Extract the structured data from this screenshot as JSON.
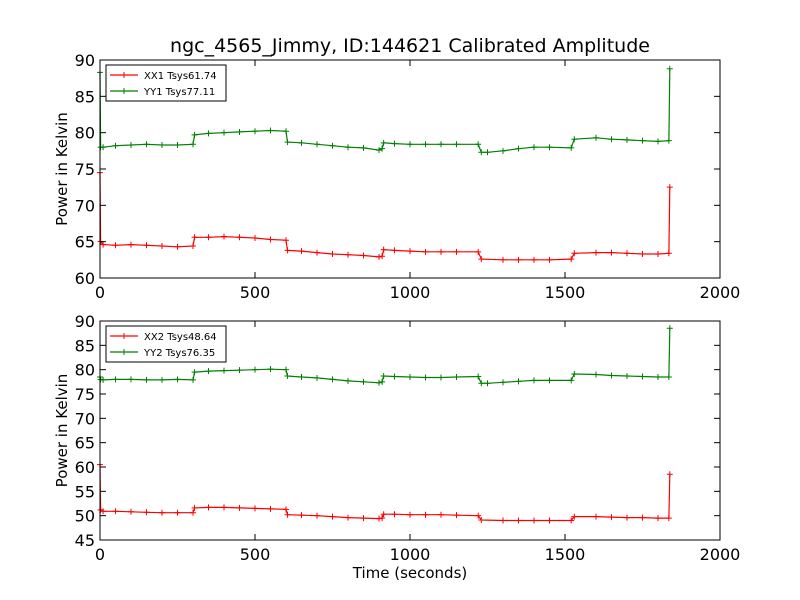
{
  "figure": {
    "title": "ngc_4565_Jimmy, ID:144621 Calibrated Amplitude"
  },
  "chart_data": [
    {
      "type": "line",
      "title": "ngc_4565_Jimmy, ID:144621 Calibrated Amplitude",
      "xlabel": "",
      "ylabel": "Power in Kelvin",
      "xlim": [
        0,
        2000
      ],
      "ylim": [
        60,
        90
      ],
      "xticks": [
        "0",
        "500",
        "1000",
        "1500",
        "2000"
      ],
      "yticks": [
        "60",
        "65",
        "70",
        "75",
        "80",
        "85",
        "90"
      ],
      "grid": false,
      "legend_position": "top-left",
      "series": [
        {
          "name": "XX1 Tsys61.74",
          "color": "#ff0000",
          "points": [
            [
              0,
              74.5
            ],
            [
              2,
              65.0
            ],
            [
              10,
              64.6
            ],
            [
              50,
              64.5
            ],
            [
              100,
              64.6
            ],
            [
              150,
              64.5
            ],
            [
              200,
              64.4
            ],
            [
              250,
              64.3
            ],
            [
              300,
              64.4
            ],
            [
              305,
              65.6
            ],
            [
              350,
              65.6
            ],
            [
              400,
              65.7
            ],
            [
              450,
              65.6
            ],
            [
              500,
              65.5
            ],
            [
              550,
              65.3
            ],
            [
              600,
              65.2
            ],
            [
              605,
              63.8
            ],
            [
              650,
              63.7
            ],
            [
              700,
              63.5
            ],
            [
              750,
              63.3
            ],
            [
              800,
              63.2
            ],
            [
              850,
              63.1
            ],
            [
              900,
              62.9
            ],
            [
              910,
              63.0
            ],
            [
              915,
              63.9
            ],
            [
              950,
              63.8
            ],
            [
              1000,
              63.7
            ],
            [
              1050,
              63.6
            ],
            [
              1100,
              63.6
            ],
            [
              1150,
              63.6
            ],
            [
              1220,
              63.6
            ],
            [
              1230,
              62.6
            ],
            [
              1300,
              62.5
            ],
            [
              1350,
              62.5
            ],
            [
              1400,
              62.5
            ],
            [
              1450,
              62.5
            ],
            [
              1520,
              62.6
            ],
            [
              1530,
              63.4
            ],
            [
              1600,
              63.5
            ],
            [
              1650,
              63.5
            ],
            [
              1700,
              63.4
            ],
            [
              1750,
              63.3
            ],
            [
              1800,
              63.3
            ],
            [
              1835,
              63.4
            ],
            [
              1838,
              72.5
            ]
          ]
        },
        {
          "name": "YY1 Tsys77.11",
          "color": "#008000",
          "points": [
            [
              0,
              88.3
            ],
            [
              2,
              78.0
            ],
            [
              10,
              78.0
            ],
            [
              50,
              78.2
            ],
            [
              100,
              78.3
            ],
            [
              150,
              78.4
            ],
            [
              200,
              78.3
            ],
            [
              250,
              78.3
            ],
            [
              300,
              78.4
            ],
            [
              305,
              79.7
            ],
            [
              350,
              79.9
            ],
            [
              400,
              80.0
            ],
            [
              450,
              80.1
            ],
            [
              500,
              80.2
            ],
            [
              550,
              80.3
            ],
            [
              600,
              80.2
            ],
            [
              605,
              78.7
            ],
            [
              650,
              78.6
            ],
            [
              700,
              78.4
            ],
            [
              750,
              78.2
            ],
            [
              800,
              78.0
            ],
            [
              850,
              77.9
            ],
            [
              900,
              77.6
            ],
            [
              910,
              77.8
            ],
            [
              915,
              78.6
            ],
            [
              950,
              78.5
            ],
            [
              1000,
              78.4
            ],
            [
              1050,
              78.4
            ],
            [
              1100,
              78.4
            ],
            [
              1150,
              78.4
            ],
            [
              1220,
              78.4
            ],
            [
              1230,
              77.3
            ],
            [
              1250,
              77.3
            ],
            [
              1300,
              77.5
            ],
            [
              1350,
              77.8
            ],
            [
              1400,
              78.0
            ],
            [
              1450,
              78.0
            ],
            [
              1520,
              77.9
            ],
            [
              1530,
              79.1
            ],
            [
              1600,
              79.3
            ],
            [
              1650,
              79.1
            ],
            [
              1700,
              79.0
            ],
            [
              1750,
              78.9
            ],
            [
              1800,
              78.8
            ],
            [
              1835,
              78.9
            ],
            [
              1838,
              88.8
            ]
          ]
        }
      ]
    },
    {
      "type": "line",
      "title": "",
      "xlabel": "Time (seconds)",
      "ylabel": "Power in Kelvin",
      "xlim": [
        0,
        2000
      ],
      "ylim": [
        45,
        90
      ],
      "xticks": [
        "0",
        "500",
        "1000",
        "1500",
        "2000"
      ],
      "yticks": [
        "45",
        "50",
        "55",
        "60",
        "65",
        "70",
        "75",
        "80",
        "85",
        "90"
      ],
      "grid": false,
      "legend_position": "top-left",
      "series": [
        {
          "name": "XX2 Tsys48.64",
          "color": "#ff0000",
          "points": [
            [
              0,
              60.5
            ],
            [
              2,
              51.2
            ],
            [
              10,
              50.9
            ],
            [
              50,
              50.9
            ],
            [
              100,
              50.8
            ],
            [
              150,
              50.7
            ],
            [
              200,
              50.6
            ],
            [
              250,
              50.6
            ],
            [
              300,
              50.6
            ],
            [
              305,
              51.6
            ],
            [
              350,
              51.7
            ],
            [
              400,
              51.7
            ],
            [
              450,
              51.6
            ],
            [
              500,
              51.5
            ],
            [
              550,
              51.4
            ],
            [
              600,
              51.3
            ],
            [
              605,
              50.2
            ],
            [
              650,
              50.1
            ],
            [
              700,
              50.0
            ],
            [
              750,
              49.8
            ],
            [
              800,
              49.6
            ],
            [
              850,
              49.5
            ],
            [
              900,
              49.4
            ],
            [
              910,
              49.5
            ],
            [
              915,
              50.3
            ],
            [
              950,
              50.3
            ],
            [
              1000,
              50.2
            ],
            [
              1050,
              50.2
            ],
            [
              1100,
              50.2
            ],
            [
              1150,
              50.1
            ],
            [
              1220,
              50.0
            ],
            [
              1230,
              49.1
            ],
            [
              1300,
              49.0
            ],
            [
              1350,
              49.0
            ],
            [
              1400,
              49.0
            ],
            [
              1450,
              49.0
            ],
            [
              1520,
              49.0
            ],
            [
              1530,
              49.8
            ],
            [
              1600,
              49.8
            ],
            [
              1650,
              49.7
            ],
            [
              1700,
              49.6
            ],
            [
              1750,
              49.6
            ],
            [
              1800,
              49.5
            ],
            [
              1835,
              49.5
            ],
            [
              1838,
              58.5
            ]
          ]
        },
        {
          "name": "YY2 Tsys76.35",
          "color": "#008000",
          "points": [
            [
              0,
              78.5
            ],
            [
              2,
              78.0
            ],
            [
              10,
              77.9
            ],
            [
              50,
              78.0
            ],
            [
              100,
              78.0
            ],
            [
              150,
              77.9
            ],
            [
              200,
              77.9
            ],
            [
              250,
              78.0
            ],
            [
              300,
              77.9
            ],
            [
              305,
              79.5
            ],
            [
              350,
              79.7
            ],
            [
              400,
              79.8
            ],
            [
              450,
              79.9
            ],
            [
              500,
              80.0
            ],
            [
              550,
              80.1
            ],
            [
              600,
              80.0
            ],
            [
              605,
              78.7
            ],
            [
              650,
              78.5
            ],
            [
              700,
              78.3
            ],
            [
              750,
              78.0
            ],
            [
              800,
              77.7
            ],
            [
              850,
              77.5
            ],
            [
              900,
              77.3
            ],
            [
              910,
              77.5
            ],
            [
              915,
              78.7
            ],
            [
              950,
              78.6
            ],
            [
              1000,
              78.5
            ],
            [
              1050,
              78.4
            ],
            [
              1100,
              78.4
            ],
            [
              1150,
              78.5
            ],
            [
              1220,
              78.6
            ],
            [
              1230,
              77.2
            ],
            [
              1250,
              77.2
            ],
            [
              1300,
              77.4
            ],
            [
              1350,
              77.6
            ],
            [
              1400,
              77.8
            ],
            [
              1450,
              77.8
            ],
            [
              1520,
              77.8
            ],
            [
              1530,
              79.1
            ],
            [
              1600,
              79.0
            ],
            [
              1650,
              78.8
            ],
            [
              1700,
              78.7
            ],
            [
              1750,
              78.6
            ],
            [
              1800,
              78.5
            ],
            [
              1835,
              78.5
            ],
            [
              1838,
              88.5
            ]
          ]
        }
      ]
    }
  ]
}
